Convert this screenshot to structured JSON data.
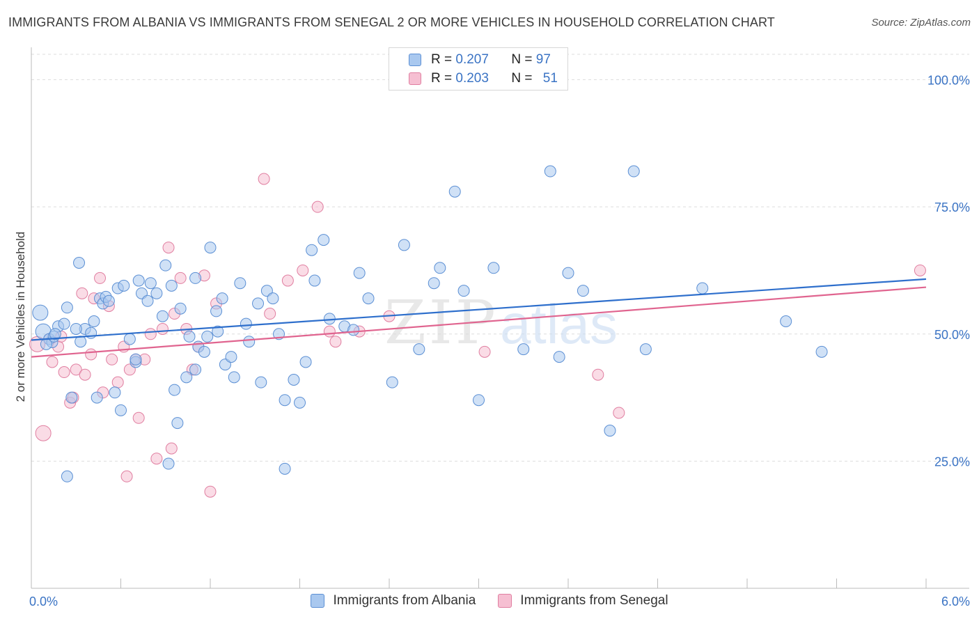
{
  "title": "IMMIGRANTS FROM ALBANIA VS IMMIGRANTS FROM SENEGAL 2 OR MORE VEHICLES IN HOUSEHOLD CORRELATION CHART",
  "source": "Source: ZipAtlas.com",
  "watermark": {
    "zip": "ZIP",
    "atlas": "atlas"
  },
  "legend_top": {
    "rows": [
      {
        "r_label": "R =",
        "r_value": "0.207",
        "n_label": "N =",
        "n_value": "97"
      },
      {
        "r_label": "R =",
        "r_value": "0.203",
        "n_label": "N =",
        "n_value": "51"
      }
    ]
  },
  "colors": {
    "albania_fill": "#a9c8ef",
    "albania_stroke": "#5b8fd4",
    "albania_line": "#2e6fcc",
    "senegal_fill": "#f6bfd2",
    "senegal_stroke": "#e07ea0",
    "senegal_line": "#e0648f",
    "tick_label": "#3a73c4",
    "grid": "#dddddd"
  },
  "chart_data": {
    "type": "scatter",
    "title": "IMMIGRANTS FROM ALBANIA VS IMMIGRANTS FROM SENEGAL 2 OR MORE VEHICLES IN HOUSEHOLD CORRELATION CHART",
    "xlabel": "",
    "ylabel": "2 or more Vehicles in Household",
    "xlim": [
      0,
      6
    ],
    "ylim": [
      0,
      105
    ],
    "x_tick_labels": [
      "0.0%",
      "6.0%"
    ],
    "y_ticks": [
      25,
      50,
      75,
      100
    ],
    "y_tick_labels": [
      "25.0%",
      "50.0%",
      "75.0%",
      "100.0%"
    ],
    "grid": "horizontal dashed",
    "legend_position": "bottom",
    "series": [
      {
        "name": "Immigrants from Albania",
        "r": 0.207,
        "n": 97,
        "trend": {
          "x": [
            0,
            6
          ],
          "y": [
            48.8,
            60.8
          ]
        },
        "points": [
          [
            0.06,
            54.2
          ],
          [
            0.08,
            50.5
          ],
          [
            0.12,
            49.0
          ],
          [
            0.14,
            48.4
          ],
          [
            0.15,
            49.5
          ],
          [
            0.18,
            51.5
          ],
          [
            0.22,
            52.0
          ],
          [
            0.24,
            55.2
          ],
          [
            0.27,
            37.5
          ],
          [
            0.32,
            64.0
          ],
          [
            0.33,
            48.5
          ],
          [
            0.36,
            51.0
          ],
          [
            0.4,
            50.2
          ],
          [
            0.42,
            52.5
          ],
          [
            0.46,
            57.0
          ],
          [
            0.48,
            56.0
          ],
          [
            0.5,
            57.3
          ],
          [
            0.52,
            56.5
          ],
          [
            0.56,
            38.5
          ],
          [
            0.58,
            59.0
          ],
          [
            0.62,
            59.5
          ],
          [
            0.66,
            49.0
          ],
          [
            0.7,
            44.5
          ],
          [
            0.72,
            60.5
          ],
          [
            0.74,
            58.0
          ],
          [
            0.78,
            56.5
          ],
          [
            0.8,
            60.0
          ],
          [
            0.84,
            58.0
          ],
          [
            0.88,
            53.5
          ],
          [
            0.9,
            63.5
          ],
          [
            0.94,
            59.5
          ],
          [
            0.96,
            39.0
          ],
          [
            1.0,
            55.0
          ],
          [
            1.04,
            41.5
          ],
          [
            1.06,
            49.5
          ],
          [
            1.1,
            61.0
          ],
          [
            1.12,
            47.5
          ],
          [
            1.16,
            46.5
          ],
          [
            1.18,
            49.5
          ],
          [
            1.2,
            67.0
          ],
          [
            1.24,
            54.5
          ],
          [
            1.28,
            57.0
          ],
          [
            1.3,
            44.0
          ],
          [
            1.34,
            45.5
          ],
          [
            1.36,
            41.5
          ],
          [
            1.4,
            60.0
          ],
          [
            1.44,
            52.0
          ],
          [
            1.46,
            48.5
          ],
          [
            1.52,
            56.0
          ],
          [
            1.54,
            40.5
          ],
          [
            1.58,
            58.5
          ],
          [
            1.62,
            57.0
          ],
          [
            1.66,
            50.0
          ],
          [
            1.7,
            37.0
          ],
          [
            1.76,
            41.0
          ],
          [
            1.84,
            44.5
          ],
          [
            1.88,
            66.5
          ],
          [
            1.9,
            60.5
          ],
          [
            1.96,
            68.5
          ],
          [
            2.0,
            53.0
          ],
          [
            2.1,
            51.5
          ],
          [
            2.2,
            62.0
          ],
          [
            2.26,
            57.0
          ],
          [
            2.42,
            40.5
          ],
          [
            2.5,
            67.5
          ],
          [
            2.6,
            47.0
          ],
          [
            2.7,
            60.0
          ],
          [
            2.74,
            63.0
          ],
          [
            2.84,
            78.0
          ],
          [
            2.9,
            58.5
          ],
          [
            3.0,
            37.0
          ],
          [
            3.1,
            63.0
          ],
          [
            3.3,
            47.0
          ],
          [
            3.48,
            82.0
          ],
          [
            3.54,
            45.5
          ],
          [
            3.6,
            62.0
          ],
          [
            3.7,
            58.5
          ],
          [
            3.88,
            31.0
          ],
          [
            4.04,
            82.0
          ],
          [
            4.12,
            47.0
          ],
          [
            4.5,
            59.0
          ],
          [
            5.06,
            52.5
          ],
          [
            5.3,
            46.5
          ],
          [
            0.6,
            35.0
          ],
          [
            0.98,
            32.5
          ],
          [
            0.92,
            24.5
          ],
          [
            1.7,
            23.5
          ],
          [
            0.24,
            22.0
          ],
          [
            1.1,
            43.0
          ],
          [
            2.16,
            50.8
          ],
          [
            0.44,
            37.5
          ],
          [
            0.3,
            51.0
          ],
          [
            1.8,
            36.5
          ],
          [
            0.7,
            45.0
          ],
          [
            1.25,
            50.5
          ],
          [
            0.1,
            48.0
          ],
          [
            0.16,
            50.0
          ]
        ]
      },
      {
        "name": "Immigrants from Senegal",
        "r": 0.203,
        "n": 51,
        "trend": {
          "x": [
            0,
            6
          ],
          "y": [
            45.5,
            59.2
          ]
        },
        "points": [
          [
            0.04,
            48.0
          ],
          [
            0.08,
            30.5
          ],
          [
            0.12,
            49.0
          ],
          [
            0.14,
            44.5
          ],
          [
            0.18,
            47.5
          ],
          [
            0.2,
            49.5
          ],
          [
            0.22,
            42.5
          ],
          [
            0.26,
            36.5
          ],
          [
            0.28,
            37.5
          ],
          [
            0.3,
            43.0
          ],
          [
            0.34,
            58.0
          ],
          [
            0.36,
            42.0
          ],
          [
            0.4,
            46.0
          ],
          [
            0.42,
            57.0
          ],
          [
            0.46,
            61.0
          ],
          [
            0.48,
            38.5
          ],
          [
            0.52,
            55.5
          ],
          [
            0.54,
            45.0
          ],
          [
            0.58,
            40.5
          ],
          [
            0.62,
            47.5
          ],
          [
            0.64,
            22.0
          ],
          [
            0.66,
            43.0
          ],
          [
            0.7,
            45.0
          ],
          [
            0.72,
            33.5
          ],
          [
            0.76,
            45.0
          ],
          [
            0.8,
            50.0
          ],
          [
            0.84,
            25.5
          ],
          [
            0.88,
            51.0
          ],
          [
            0.92,
            67.0
          ],
          [
            0.94,
            27.5
          ],
          [
            0.96,
            54.0
          ],
          [
            1.0,
            61.0
          ],
          [
            1.04,
            51.0
          ],
          [
            1.08,
            43.0
          ],
          [
            1.12,
            47.5
          ],
          [
            1.16,
            61.5
          ],
          [
            1.2,
            19.0
          ],
          [
            1.24,
            56.0
          ],
          [
            1.56,
            80.5
          ],
          [
            1.6,
            54.0
          ],
          [
            1.72,
            60.5
          ],
          [
            1.82,
            62.5
          ],
          [
            1.92,
            75.0
          ],
          [
            2.0,
            50.5
          ],
          [
            2.04,
            48.5
          ],
          [
            2.2,
            50.5
          ],
          [
            2.4,
            53.5
          ],
          [
            3.04,
            46.5
          ],
          [
            3.8,
            42.0
          ],
          [
            3.94,
            34.5
          ],
          [
            5.96,
            62.5
          ]
        ]
      }
    ]
  },
  "legend_bottom": {
    "items": [
      "Immigrants from Albania",
      "Immigrants from Senegal"
    ]
  }
}
